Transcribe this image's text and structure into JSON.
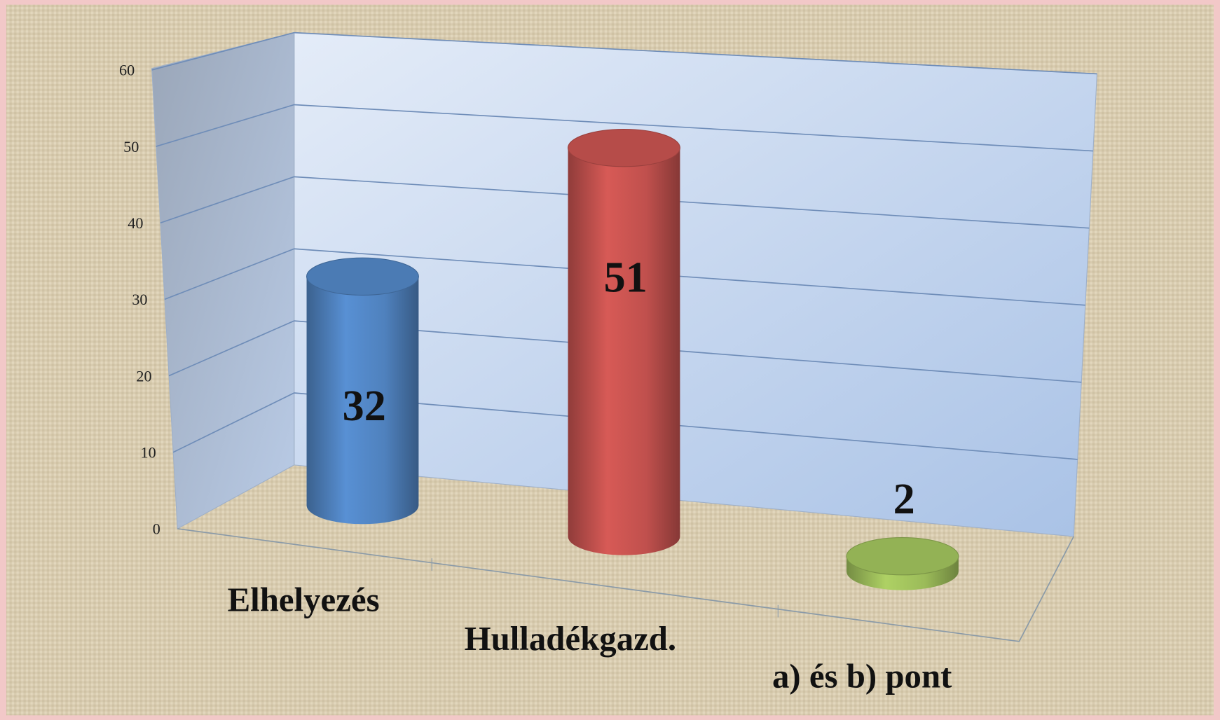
{
  "chart_data": {
    "type": "bar",
    "categories": [
      "Elhelyezés",
      "Hulladékgazd.",
      "a) és b) pont"
    ],
    "series": [
      {
        "name": null,
        "colors": [
          "#4f81bd",
          "#c0504d",
          "#9bbb59"
        ],
        "values": [
          32,
          51,
          2
        ]
      }
    ],
    "ylim": [
      0,
      60
    ],
    "yticks": [
      0,
      10,
      20,
      30,
      40,
      50,
      60
    ],
    "grid": true
  }
}
